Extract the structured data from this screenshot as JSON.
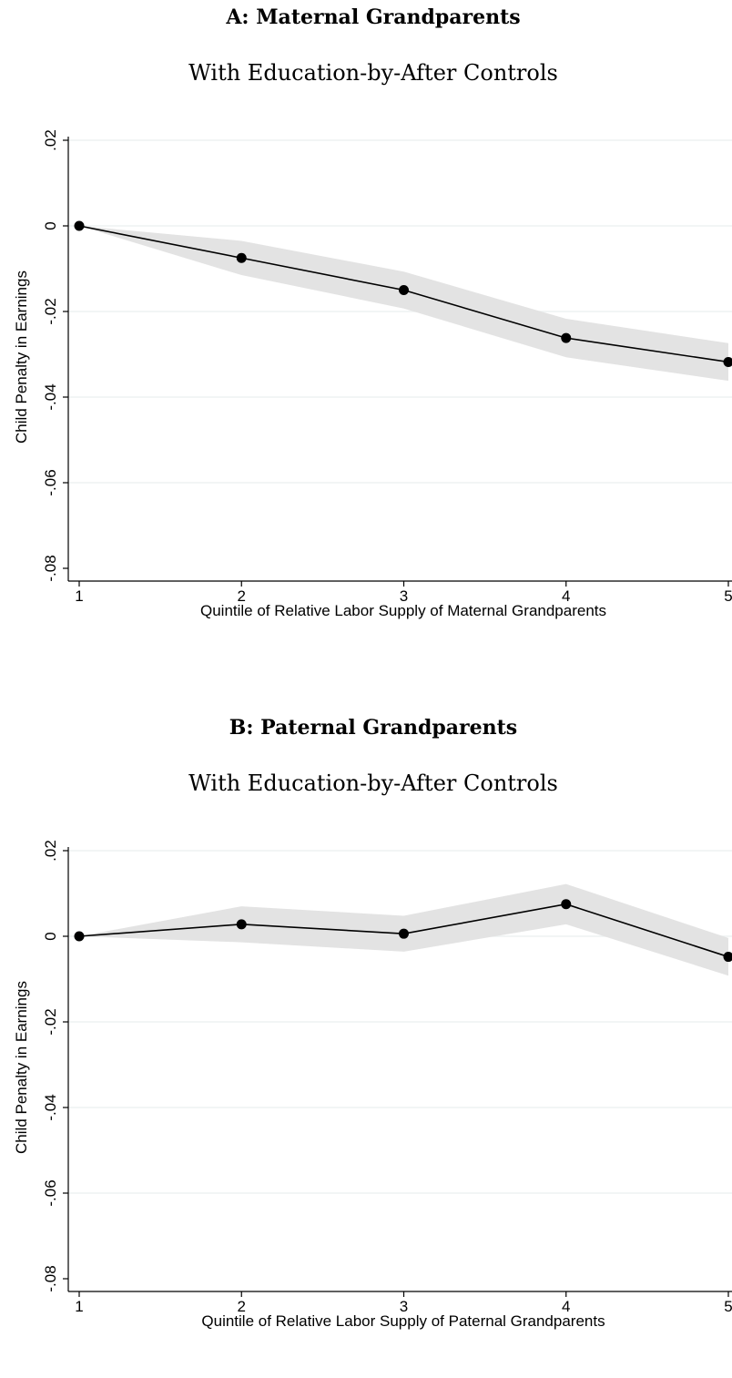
{
  "chart_data": [
    {
      "type": "line",
      "title": "A: Maternal Grandparents",
      "subtitle": "With Education-by-After Controls",
      "xlabel": "Quintile of Relative Labor Supply of Maternal Grandparents",
      "ylabel": "Child Penalty in Earnings",
      "x": [
        1,
        2,
        3,
        4,
        5
      ],
      "xlim": [
        1,
        5
      ],
      "ylim": [
        -0.08,
        0.02
      ],
      "xticks": [
        "1",
        "2",
        "3",
        "4",
        "5"
      ],
      "yticks": [
        {
          "value": 0.02,
          "label": ".02"
        },
        {
          "value": 0.0,
          "label": "0"
        },
        {
          "value": -0.02,
          "label": "-.02"
        },
        {
          "value": -0.04,
          "label": "-.04"
        },
        {
          "value": -0.06,
          "label": "-.06"
        },
        {
          "value": -0.08,
          "label": "-.08"
        }
      ],
      "grid": true,
      "series": [
        {
          "values": [
            0.0,
            -0.0075,
            -0.015,
            -0.0262,
            -0.0318
          ],
          "ci_lower": [
            0.0,
            -0.0115,
            -0.0193,
            -0.0307,
            -0.0362
          ],
          "ci_upper": [
            0.0,
            -0.0035,
            -0.0107,
            -0.0217,
            -0.0274
          ]
        }
      ]
    },
    {
      "type": "line",
      "title": "B: Paternal Grandparents",
      "subtitle": "With Education-by-After Controls",
      "xlabel": "Quintile of Relative Labor Supply of Paternal Grandparents",
      "ylabel": "Child Penalty in Earnings",
      "x": [
        1,
        2,
        3,
        4,
        5
      ],
      "xlim": [
        1,
        5
      ],
      "ylim": [
        -0.08,
        0.02
      ],
      "xticks": [
        "1",
        "2",
        "3",
        "4",
        "5"
      ],
      "yticks": [
        {
          "value": 0.02,
          "label": ".02"
        },
        {
          "value": 0.0,
          "label": "0"
        },
        {
          "value": -0.02,
          "label": "-.02"
        },
        {
          "value": -0.04,
          "label": "-.04"
        },
        {
          "value": -0.06,
          "label": "-.06"
        },
        {
          "value": -0.08,
          "label": "-.08"
        }
      ],
      "grid": true,
      "series": [
        {
          "values": [
            0.0,
            0.0028,
            0.0006,
            0.0075,
            -0.0048
          ],
          "ci_lower": [
            0.0,
            -0.0014,
            -0.0036,
            0.0028,
            -0.0092
          ],
          "ci_upper": [
            0.0,
            0.007,
            0.0048,
            0.0122,
            -0.0004
          ]
        }
      ]
    }
  ],
  "colors": {
    "line": "#000000",
    "ci_band": "#e3e3e3",
    "grid": "#eef2f2",
    "axis": "#000000"
  }
}
